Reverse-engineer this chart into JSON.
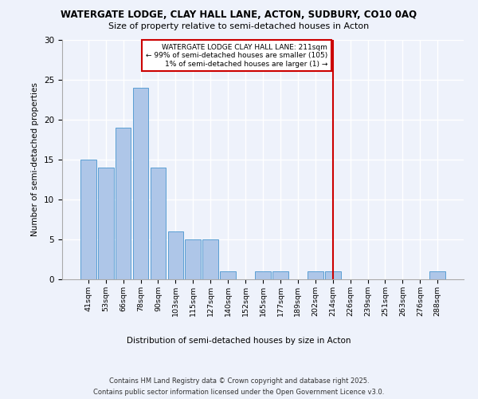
{
  "title1": "WATERGATE LODGE, CLAY HALL LANE, ACTON, SUDBURY, CO10 0AQ",
  "title2": "Size of property relative to semi-detached houses in Acton",
  "xlabel": "Distribution of semi-detached houses by size in Acton",
  "ylabel": "Number of semi-detached properties",
  "categories": [
    "41sqm",
    "53sqm",
    "66sqm",
    "78sqm",
    "90sqm",
    "103sqm",
    "115sqm",
    "127sqm",
    "140sqm",
    "152sqm",
    "165sqm",
    "177sqm",
    "189sqm",
    "202sqm",
    "214sqm",
    "226sqm",
    "239sqm",
    "251sqm",
    "263sqm",
    "276sqm",
    "288sqm"
  ],
  "values": [
    15,
    14,
    19,
    24,
    14,
    6,
    5,
    5,
    1,
    0,
    1,
    1,
    0,
    1,
    1,
    0,
    0,
    0,
    0,
    0,
    1
  ],
  "bar_color": "#aec6e8",
  "bar_edge_color": "#5a9fd4",
  "vline_x": 14,
  "vline_color": "#cc0000",
  "annotation_title": "WATERGATE LODGE CLAY HALL LANE: 211sqm",
  "annotation_line1": "← 99% of semi-detached houses are smaller (105)",
  "annotation_line2": "1% of semi-detached houses are larger (1) →",
  "annotation_box_color": "#cc0000",
  "ylim": [
    0,
    30
  ],
  "yticks": [
    0,
    5,
    10,
    15,
    20,
    25,
    30
  ],
  "background_color": "#eef2fb",
  "grid_color": "#ffffff",
  "footer1": "Contains HM Land Registry data © Crown copyright and database right 2025.",
  "footer2": "Contains public sector information licensed under the Open Government Licence v3.0."
}
